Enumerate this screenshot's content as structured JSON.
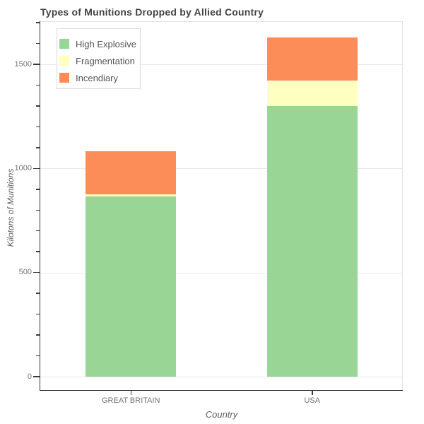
{
  "chart_data": {
    "type": "bar",
    "stacked": true,
    "title": "Types of Munitions Dropped by Allied Country",
    "xlabel": "Country",
    "ylabel": "Kilotons of Munitions",
    "categories": [
      "GREAT BRITAIN",
      "USA"
    ],
    "series": [
      {
        "name": "High Explosive",
        "color": "#99d594",
        "values": [
          865,
          1300
        ]
      },
      {
        "name": "Fragmentation",
        "color": "#ffffbf",
        "values": [
          9,
          122
        ]
      },
      {
        "name": "Incendiary",
        "color": "#fc8d59",
        "values": [
          208,
          207
        ]
      }
    ],
    "stack_totals": [
      1082,
      1629
    ],
    "ylim": [
      0,
      1700
    ],
    "ytick_major": [
      0,
      500,
      1000,
      1500
    ],
    "ytick_minor_step": 100,
    "grid": "horizontal-major-only",
    "legend_position": "top-left",
    "legend_entries": [
      "High Explosive",
      "Fragmentation",
      "Incendiary"
    ]
  },
  "styles": {
    "title_color": "#434343",
    "tick_label_color": "#757575",
    "axis_label_color": "#616161",
    "legend_text_color": "#555555",
    "gridline_color": "#e8e8e8",
    "spine_dark": "#2f2f2f",
    "spine_light": "#e3e3e3",
    "legend_border": "#dcdcdc",
    "background": "#ffffff"
  }
}
